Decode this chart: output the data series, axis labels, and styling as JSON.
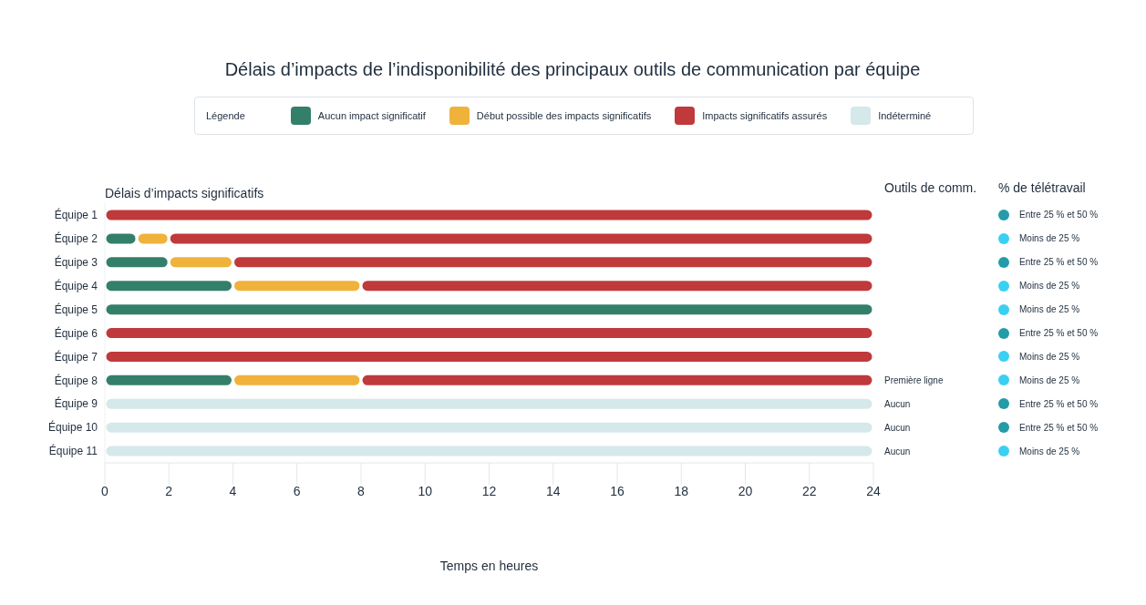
{
  "chart_data": {
    "type": "bar",
    "orientation": "horizontal",
    "stacked": true,
    "title": "Délais d’impacts de l’indisponibilité des principaux outils de communication par équipe",
    "legend_title": "Légende",
    "legend": "top",
    "ylabel": "Délais d’impacts significatifs",
    "xlabel": "Temps en heures",
    "categories": [
      "Équipe 1",
      "Équipe 2",
      "Équipe 3",
      "Équipe 4",
      "Équipe 5",
      "Équipe 6",
      "Équipe 7",
      "Équipe 8",
      "Équipe 9",
      "Équipe 10",
      "Équipe 11"
    ],
    "series": [
      {
        "name": "Aucun impact significatif",
        "color": "#347f6a",
        "values": [
          null,
          1,
          2,
          4,
          24,
          null,
          null,
          4,
          null,
          null,
          null
        ]
      },
      {
        "name": "Début possible des impacts significatifs",
        "color": "#efb23b",
        "values": [
          null,
          1,
          2,
          4,
          null,
          null,
          null,
          4,
          null,
          null,
          null
        ]
      },
      {
        "name": "Impacts significatifs assurés",
        "color": "#c0393b",
        "values": [
          24,
          22,
          20,
          16,
          null,
          24,
          24,
          16,
          null,
          null,
          null
        ]
      },
      {
        "name": "Indéterminé",
        "color": "#d5e8ea",
        "values": [
          null,
          null,
          null,
          null,
          null,
          null,
          null,
          null,
          24,
          24,
          24
        ]
      }
    ],
    "xlim": [
      0,
      24
    ],
    "xticks": [
      0,
      2,
      4,
      6,
      8,
      10,
      12,
      14,
      16,
      18,
      20,
      22,
      24
    ],
    "annotations": [
      "Outils de comm.",
      "Première ligne",
      "Aucun",
      "Aucun",
      "Aucun",
      "% de télétravail",
      "Entre 25 % et 50 %",
      "Moins de 25 %",
      "Entre 25 % et 50 %",
      "Moins de 25 %",
      "Moins de 25 %",
      "Entre 25 % et 50 %",
      "Moins de 25 %",
      "Moins de 25 %",
      "Entre 25 % et 50 %",
      "Entre 25 % et 50 %",
      "Moins de 25 %"
    ]
  }
}
